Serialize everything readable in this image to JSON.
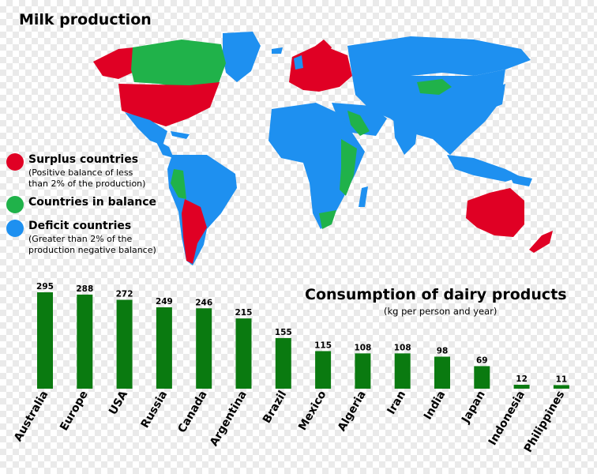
{
  "map": {
    "title": "Milk production",
    "colors": {
      "surplus": "#e00024",
      "balance": "#20b24a",
      "deficit": "#1e90f0",
      "ocean": "#ffffff"
    }
  },
  "legend": {
    "items": [
      {
        "key": "surplus",
        "label": "Surplus countries",
        "note_line1": "(Positive balance of less",
        "note_line2": " than 2% of the production)"
      },
      {
        "key": "balance",
        "label": "Countries in balance",
        "note_line1": "",
        "note_line2": ""
      },
      {
        "key": "deficit",
        "label": "Deficit countries",
        "note_line1": "(Greater than 2% of the",
        "note_line2": " production negative balance)"
      }
    ]
  },
  "consumption": {
    "title": "Consumption of dairy products",
    "subtitle": "(kg per person and year)"
  },
  "chart_data": {
    "type": "bar",
    "categories": [
      "Australia",
      "Europe",
      "USA",
      "Russia",
      "Canada",
      "Argentina",
      "Brazil",
      "Mexico",
      "Algeria",
      "Iran",
      "India",
      "Japan",
      "Indonesia",
      "Philippines"
    ],
    "values": [
      295,
      288,
      272,
      249,
      246,
      215,
      155,
      115,
      108,
      108,
      98,
      69,
      12,
      11
    ],
    "title": "Consumption of dairy products",
    "subtitle": "(kg per person and year)",
    "xlabel": "",
    "ylabel": "",
    "ylim": [
      0,
      295
    ],
    "bar_color": "#0a7a10",
    "grid": false
  }
}
